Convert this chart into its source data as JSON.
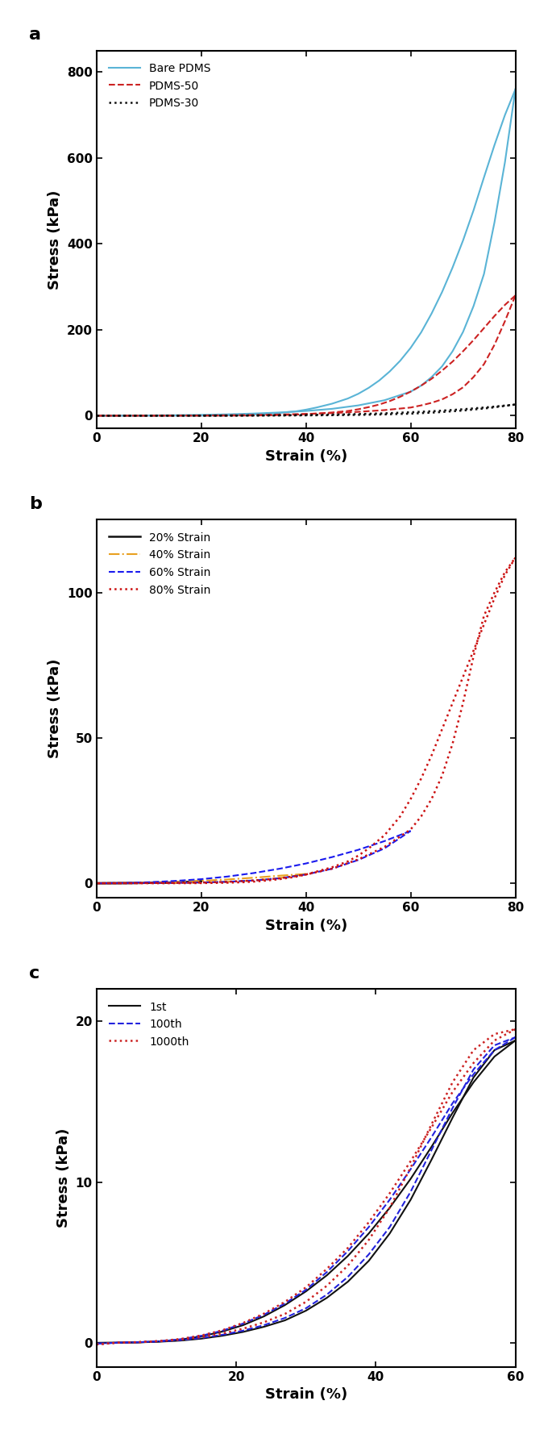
{
  "panel_a": {
    "label": "a",
    "xlabel": "Strain (%)",
    "ylabel": "Stress (kPa)",
    "xlim": [
      0,
      80
    ],
    "ylim": [
      -30,
      850
    ],
    "yticks": [
      0,
      200,
      400,
      600,
      800
    ],
    "xticks": [
      0,
      20,
      40,
      60,
      80
    ],
    "series": [
      {
        "name": "Bare PDMS",
        "color": "#5ab4d6",
        "linestyle": "solid",
        "linewidth": 1.5,
        "x_load": [
          0,
          5,
          10,
          15,
          20,
          25,
          30,
          35,
          40,
          45,
          50,
          55,
          60,
          62,
          64,
          66,
          68,
          70,
          72,
          74,
          76,
          78,
          80
        ],
        "y_load": [
          0,
          0.3,
          0.7,
          1.2,
          2.0,
          3.2,
          5.0,
          7.5,
          11,
          16,
          24,
          36,
          56,
          70,
          90,
          115,
          150,
          195,
          255,
          330,
          450,
          590,
          760
        ],
        "x_unload": [
          80,
          78,
          76,
          74,
          72,
          70,
          68,
          66,
          64,
          62,
          60,
          58,
          56,
          54,
          52,
          50,
          48,
          45,
          42,
          40,
          38,
          35,
          32,
          30,
          28,
          25,
          22,
          20,
          18,
          15,
          12,
          10,
          5,
          0
        ],
        "y_unload": [
          760,
          700,
          630,
          555,
          478,
          408,
          345,
          288,
          238,
          194,
          158,
          128,
          103,
          82,
          65,
          51,
          40,
          28,
          19,
          14,
          10,
          6.5,
          4.0,
          2.5,
          1.5,
          0.8,
          0.4,
          0.2,
          0.1,
          0.05,
          0.02,
          0.01,
          0,
          0
        ]
      },
      {
        "name": "PDMS-50",
        "color": "#cc2222",
        "linestyle": "dashed",
        "linewidth": 1.5,
        "x_load": [
          0,
          5,
          10,
          15,
          20,
          25,
          30,
          35,
          40,
          45,
          50,
          55,
          60,
          62,
          64,
          66,
          68,
          70,
          72,
          74,
          76,
          78,
          80
        ],
        "y_load": [
          0,
          0.1,
          0.2,
          0.4,
          0.7,
          1.1,
          1.8,
          2.8,
          4.2,
          6.0,
          9.0,
          13,
          19,
          24,
          30,
          38,
          50,
          66,
          90,
          120,
          165,
          220,
          280
        ],
        "x_unload": [
          80,
          78,
          76,
          74,
          72,
          70,
          68,
          66,
          64,
          62,
          60,
          58,
          56,
          54,
          52,
          50,
          48,
          45,
          42,
          40,
          38,
          35,
          32,
          30,
          28,
          25,
          22,
          20,
          18,
          15,
          12,
          10,
          5,
          0
        ],
        "y_unload": [
          280,
          258,
          232,
          204,
          176,
          150,
          126,
          105,
          86,
          70,
          56,
          44,
          34,
          26,
          20,
          15,
          11,
          7.5,
          5.0,
          3.5,
          2.4,
          1.4,
          0.8,
          0.5,
          0.3,
          0.15,
          0.08,
          0.04,
          0.02,
          0.01,
          0,
          0,
          0,
          0
        ]
      },
      {
        "name": "PDMS-30",
        "color": "#111111",
        "linestyle": "dotted",
        "linewidth": 1.8,
        "x_load": [
          0,
          5,
          10,
          15,
          20,
          25,
          30,
          35,
          40,
          45,
          50,
          55,
          60,
          65,
          70,
          75,
          80
        ],
        "y_load": [
          0,
          0.02,
          0.04,
          0.07,
          0.12,
          0.2,
          0.32,
          0.5,
          0.78,
          1.2,
          1.9,
          3.0,
          4.8,
          7.8,
          12,
          18,
          26
        ],
        "x_unload": [
          80,
          75,
          70,
          65,
          60,
          55,
          50,
          45,
          40,
          35,
          30,
          25,
          20,
          15,
          10,
          5,
          0
        ],
        "y_unload": [
          26,
          20,
          15,
          11,
          8,
          5.5,
          3.8,
          2.5,
          1.6,
          1.0,
          0.6,
          0.3,
          0.15,
          0.06,
          0.02,
          0.01,
          0
        ]
      }
    ]
  },
  "panel_b": {
    "label": "b",
    "xlabel": "Strain (%)",
    "ylabel": "Stress (kPa)",
    "xlim": [
      0,
      80
    ],
    "ylim": [
      -5,
      125
    ],
    "yticks": [
      0,
      50,
      100
    ],
    "xticks": [
      0,
      20,
      40,
      60,
      80
    ],
    "series": [
      {
        "name": "20% Strain",
        "color": "#111111",
        "linestyle": "solid",
        "linewidth": 1.8,
        "x_load": [
          0,
          2,
          4,
          6,
          8,
          10,
          12,
          14,
          16,
          18,
          20
        ],
        "y_load": [
          0,
          0.01,
          0.02,
          0.04,
          0.07,
          0.11,
          0.17,
          0.25,
          0.36,
          0.5,
          0.65
        ],
        "x_unload": [
          20,
          18,
          16,
          14,
          12,
          10,
          8,
          6,
          4,
          2,
          0
        ],
        "y_unload": [
          0.65,
          0.5,
          0.36,
          0.25,
          0.17,
          0.11,
          0.07,
          0.04,
          0.02,
          0.01,
          0
        ]
      },
      {
        "name": "40% Strain",
        "color": "#e8a020",
        "linestyle": "dashdot",
        "linewidth": 1.5,
        "x_load": [
          0,
          5,
          10,
          15,
          20,
          25,
          30,
          35,
          40
        ],
        "y_load": [
          0,
          0.03,
          0.07,
          0.14,
          0.26,
          0.5,
          0.95,
          1.8,
          3.2
        ],
        "x_unload": [
          40,
          35,
          30,
          25,
          20,
          15,
          10,
          5,
          0
        ],
        "y_unload": [
          3.2,
          2.6,
          1.9,
          1.3,
          0.85,
          0.5,
          0.25,
          0.1,
          0
        ]
      },
      {
        "name": "60% Strain",
        "color": "#1a1aee",
        "linestyle": "dashed",
        "linewidth": 1.5,
        "x_load": [
          0,
          5,
          10,
          15,
          20,
          25,
          30,
          35,
          40,
          45,
          50,
          55,
          60
        ],
        "y_load": [
          0,
          0.03,
          0.07,
          0.14,
          0.26,
          0.5,
          0.95,
          1.7,
          3.0,
          5.0,
          8.0,
          12,
          18
        ],
        "x_unload": [
          60,
          55,
          50,
          45,
          40,
          35,
          30,
          25,
          20,
          15,
          10,
          5,
          0
        ],
        "y_unload": [
          18,
          14.5,
          11.5,
          9.0,
          6.8,
          5.0,
          3.5,
          2.3,
          1.4,
          0.8,
          0.35,
          0.1,
          0
        ]
      },
      {
        "name": "80% Strain",
        "color": "#cc1111",
        "linestyle": "dotted",
        "linewidth": 1.8,
        "x_load": [
          0,
          5,
          10,
          15,
          20,
          25,
          30,
          35,
          40,
          45,
          50,
          55,
          60,
          62,
          64,
          66,
          68,
          70,
          72,
          74,
          76,
          78,
          80
        ],
        "y_load": [
          0,
          0.03,
          0.07,
          0.14,
          0.26,
          0.5,
          0.95,
          1.7,
          3.0,
          5.0,
          8.2,
          12.5,
          18.5,
          23,
          29,
          37,
          48,
          62,
          78,
          92,
          100,
          107,
          112
        ],
        "x_unload": [
          80,
          78,
          76,
          74,
          72,
          70,
          68,
          66,
          64,
          62,
          60,
          58,
          55,
          52,
          50,
          48,
          45,
          42,
          40,
          38,
          35,
          32,
          30,
          28,
          25,
          22,
          20,
          18,
          15,
          12,
          10,
          5,
          0
        ],
        "y_unload": [
          112,
          106,
          98,
          89,
          80,
          71,
          62,
          53,
          44,
          36,
          29,
          23,
          16.5,
          12,
          9.5,
          7.5,
          5.5,
          4.0,
          3.0,
          2.2,
          1.4,
          0.85,
          0.55,
          0.35,
          0.18,
          0.09,
          0.05,
          0.03,
          0.01,
          0,
          0,
          0,
          0
        ]
      }
    ]
  },
  "panel_c": {
    "label": "c",
    "xlabel": "Strain (%)",
    "ylabel": "Stress (kPa)",
    "xlim": [
      0,
      60
    ],
    "ylim": [
      -1.5,
      22
    ],
    "yticks": [
      0,
      10,
      20
    ],
    "xticks": [
      0,
      20,
      40,
      60
    ],
    "series": [
      {
        "name": "1st",
        "color": "#111111",
        "linestyle": "solid",
        "linewidth": 1.5,
        "x_load": [
          0,
          3,
          6,
          9,
          12,
          15,
          18,
          21,
          24,
          27,
          30,
          33,
          36,
          39,
          42,
          45,
          48,
          51,
          54,
          57,
          60
        ],
        "y_load": [
          0,
          0.01,
          0.03,
          0.07,
          0.14,
          0.26,
          0.44,
          0.68,
          1.0,
          1.4,
          2.0,
          2.8,
          3.8,
          5.1,
          6.8,
          8.9,
          11.4,
          14.0,
          16.5,
          18.2,
          18.8
        ],
        "x_unload": [
          60,
          57,
          54,
          51,
          48,
          45,
          42,
          39,
          36,
          33,
          30,
          27,
          24,
          21,
          18,
          15,
          12,
          9,
          6,
          3,
          0
        ],
        "y_unload": [
          18.8,
          17.8,
          16.2,
          14.3,
          12.2,
          10.2,
          8.4,
          6.8,
          5.4,
          4.2,
          3.2,
          2.35,
          1.65,
          1.1,
          0.7,
          0.4,
          0.2,
          0.09,
          0.03,
          0.01,
          0
        ]
      },
      {
        "name": "100th",
        "color": "#2222dd",
        "linestyle": "dashed",
        "linewidth": 1.5,
        "x_load": [
          0,
          3,
          6,
          9,
          12,
          15,
          18,
          21,
          24,
          27,
          30,
          33,
          36,
          39,
          42,
          45,
          48,
          51,
          54,
          57,
          60
        ],
        "y_load": [
          -0.05,
          0.01,
          0.04,
          0.09,
          0.17,
          0.3,
          0.5,
          0.76,
          1.1,
          1.55,
          2.15,
          3.0,
          4.1,
          5.5,
          7.2,
          9.4,
          12.0,
          14.6,
          17.0,
          18.5,
          19.0
        ],
        "x_unload": [
          60,
          57,
          54,
          51,
          48,
          45,
          42,
          39,
          36,
          33,
          30,
          27,
          24,
          21,
          18,
          15,
          12,
          9,
          6,
          3,
          0
        ],
        "y_unload": [
          19.0,
          18.2,
          16.7,
          14.9,
          12.8,
          10.8,
          8.9,
          7.2,
          5.7,
          4.4,
          3.3,
          2.45,
          1.75,
          1.2,
          0.75,
          0.44,
          0.22,
          0.1,
          0.04,
          0.01,
          -0.05
        ]
      },
      {
        "name": "1000th",
        "color": "#cc2222",
        "linestyle": "dotted",
        "linewidth": 1.8,
        "x_load": [
          0,
          3,
          6,
          9,
          12,
          15,
          18,
          21,
          24,
          27,
          30,
          33,
          36,
          39,
          42,
          45,
          48,
          51,
          54,
          57,
          60
        ],
        "y_load": [
          -0.1,
          0.01,
          0.05,
          0.11,
          0.2,
          0.35,
          0.58,
          0.88,
          1.28,
          1.8,
          2.55,
          3.55,
          4.8,
          6.4,
          8.4,
          10.9,
          13.6,
          16.2,
          18.2,
          19.2,
          19.5
        ],
        "x_unload": [
          60,
          57,
          54,
          51,
          48,
          45,
          42,
          39,
          36,
          33,
          30,
          27,
          24,
          21,
          18,
          15,
          12,
          9,
          6,
          3,
          0
        ],
        "y_unload": [
          19.5,
          18.8,
          17.4,
          15.6,
          13.4,
          11.3,
          9.3,
          7.5,
          5.9,
          4.6,
          3.45,
          2.55,
          1.82,
          1.24,
          0.78,
          0.46,
          0.24,
          0.11,
          0.04,
          0.01,
          -0.1
        ]
      }
    ]
  }
}
